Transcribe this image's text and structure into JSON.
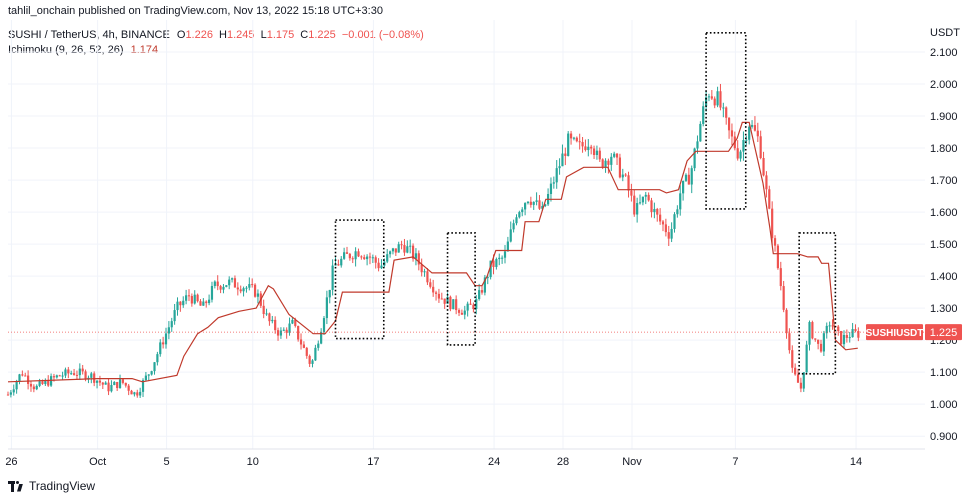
{
  "header": {
    "publish_line": "tahlil_onchain published on TradingView.com, Nov 13, 2022 15:18 UTC+3:30"
  },
  "legend": {
    "symbol": "SUSHI / TetherUS, 4h, BINANCE",
    "o_label": "O",
    "o_value": "1.226",
    "h_label": "H",
    "h_value": "1.245",
    "l_label": "L",
    "l_value": "1.175",
    "c_label": "C",
    "c_value": "1.225",
    "change": "−0.001 (−0.08%)",
    "indicator": "Ichimoku (9, 26, 52, 26)",
    "indicator_value": "1.174"
  },
  "footer": {
    "brand": "TradingView"
  },
  "colors": {
    "up": "#26a69a",
    "down": "#ef5350",
    "ichimoku": "#c0392b",
    "grid": "#f0f3fa",
    "price_tag": "#ef5350"
  },
  "chart_data": {
    "type": "candlestick",
    "currency_label": "USDT",
    "y_ticks": [
      "2.100",
      "2.000",
      "1.900",
      "1.800",
      "1.700",
      "1.600",
      "1.500",
      "1.400",
      "1.300",
      "1.200",
      "1.100",
      "1.000",
      "0.900"
    ],
    "ylim": [
      0.86,
      2.2
    ],
    "x_tick_labels": [
      {
        "label": "26",
        "day": -4
      },
      {
        "label": "Oct",
        "day": 1
      },
      {
        "label": "5",
        "day": 5
      },
      {
        "label": "10",
        "day": 10
      },
      {
        "label": "17",
        "day": 17
      },
      {
        "label": "24",
        "day": 24
      },
      {
        "label": "28",
        "day": 28
      },
      {
        "label": "Nov",
        "day": 32
      },
      {
        "label": "7",
        "day": 38
      },
      {
        "label": "14",
        "day": 45
      }
    ],
    "xlim_days": [
      -4.2,
      49
    ],
    "last_price": {
      "symbol": "SUSHIUSDT",
      "value": "1.225",
      "price": 1.225
    },
    "close_path": [
      [
        -4.2,
        1.03
      ],
      [
        -3.4,
        1.1
      ],
      [
        -2.6,
        1.05
      ],
      [
        -1.9,
        1.07
      ],
      [
        -1.2,
        1.09
      ],
      [
        -0.4,
        1.1
      ],
      [
        0.6,
        1.09
      ],
      [
        1.6,
        1.05
      ],
      [
        2.4,
        1.07
      ],
      [
        3.2,
        1.03
      ],
      [
        4.0,
        1.1
      ],
      [
        4.8,
        1.2
      ],
      [
        5.6,
        1.3
      ],
      [
        6.3,
        1.34
      ],
      [
        7.1,
        1.3
      ],
      [
        7.8,
        1.37
      ],
      [
        8.6,
        1.38
      ],
      [
        9.4,
        1.37
      ],
      [
        10.2,
        1.35
      ],
      [
        10.9,
        1.26
      ],
      [
        11.6,
        1.22
      ],
      [
        12.3,
        1.25
      ],
      [
        12.9,
        1.18
      ],
      [
        13.4,
        1.12
      ],
      [
        14.0,
        1.25
      ],
      [
        14.7,
        1.43
      ],
      [
        15.4,
        1.46
      ],
      [
        16.1,
        1.48
      ],
      [
        16.8,
        1.46
      ],
      [
        17.4,
        1.43
      ],
      [
        18.0,
        1.47
      ],
      [
        18.7,
        1.5
      ],
      [
        19.4,
        1.46
      ],
      [
        20.1,
        1.4
      ],
      [
        20.8,
        1.34
      ],
      [
        21.6,
        1.31
      ],
      [
        22.3,
        1.29
      ],
      [
        23.0,
        1.32
      ],
      [
        23.8,
        1.43
      ],
      [
        24.6,
        1.46
      ],
      [
        25.3,
        1.6
      ],
      [
        26.0,
        1.65
      ],
      [
        26.8,
        1.6
      ],
      [
        27.6,
        1.72
      ],
      [
        28.3,
        1.82
      ],
      [
        29.0,
        1.8
      ],
      [
        29.6,
        1.83
      ],
      [
        30.1,
        1.75
      ],
      [
        30.8,
        1.78
      ],
      [
        31.6,
        1.7
      ],
      [
        32.2,
        1.6
      ],
      [
        32.8,
        1.65
      ],
      [
        33.5,
        1.58
      ],
      [
        34.2,
        1.53
      ],
      [
        34.8,
        1.66
      ],
      [
        35.4,
        1.72
      ],
      [
        35.9,
        1.86
      ],
      [
        36.4,
        1.98
      ],
      [
        37.0,
        1.95
      ],
      [
        37.6,
        1.85
      ],
      [
        38.2,
        1.78
      ],
      [
        38.8,
        1.88
      ],
      [
        39.4,
        1.82
      ],
      [
        40.0,
        1.58
      ],
      [
        40.7,
        1.35
      ],
      [
        41.3,
        1.1
      ],
      [
        41.8,
        1.05
      ],
      [
        42.3,
        1.24
      ],
      [
        42.9,
        1.17
      ],
      [
        43.5,
        1.26
      ],
      [
        44.1,
        1.2
      ],
      [
        44.7,
        1.22
      ],
      [
        45.2,
        1.22
      ]
    ],
    "ichimoku_path": [
      [
        -4.2,
        1.07
      ],
      [
        1.0,
        1.08
      ],
      [
        3.0,
        1.08
      ],
      [
        3.6,
        1.07
      ],
      [
        5.6,
        1.09
      ],
      [
        6.0,
        1.15
      ],
      [
        6.8,
        1.22
      ],
      [
        7.4,
        1.24
      ],
      [
        8.0,
        1.27
      ],
      [
        9.2,
        1.29
      ],
      [
        10.2,
        1.3
      ],
      [
        10.9,
        1.37
      ],
      [
        11.2,
        1.36
      ],
      [
        12.1,
        1.28
      ],
      [
        13.5,
        1.22
      ],
      [
        14.2,
        1.22
      ],
      [
        14.8,
        1.26
      ],
      [
        15.2,
        1.35
      ],
      [
        17.9,
        1.35
      ],
      [
        18.2,
        1.45
      ],
      [
        19.3,
        1.46
      ],
      [
        20.4,
        1.41
      ],
      [
        22.4,
        1.41
      ],
      [
        22.9,
        1.37
      ],
      [
        23.3,
        1.37
      ],
      [
        23.6,
        1.4
      ],
      [
        24.1,
        1.48
      ],
      [
        25.6,
        1.48
      ],
      [
        25.8,
        1.57
      ],
      [
        26.6,
        1.57
      ],
      [
        27.0,
        1.64
      ],
      [
        27.9,
        1.64
      ],
      [
        28.2,
        1.71
      ],
      [
        29.2,
        1.74
      ],
      [
        30.6,
        1.74
      ],
      [
        31.2,
        1.67
      ],
      [
        33.6,
        1.67
      ],
      [
        34.0,
        1.66
      ],
      [
        34.7,
        1.67
      ],
      [
        35.2,
        1.76
      ],
      [
        35.7,
        1.79
      ],
      [
        37.6,
        1.79
      ],
      [
        38.1,
        1.83
      ],
      [
        38.4,
        1.88
      ],
      [
        38.8,
        1.88
      ],
      [
        39.6,
        1.69
      ],
      [
        40.0,
        1.55
      ],
      [
        40.2,
        1.47
      ],
      [
        41.6,
        1.47
      ],
      [
        42.2,
        1.46
      ],
      [
        42.8,
        1.46
      ],
      [
        43.0,
        1.44
      ],
      [
        43.4,
        1.44
      ],
      [
        43.8,
        1.2
      ],
      [
        44.4,
        1.17
      ],
      [
        45.1,
        1.175
      ]
    ],
    "highlight_boxes": [
      {
        "x0": 14.8,
        "x1": 17.6,
        "y0": 1.205,
        "y1": 1.575
      },
      {
        "x0": 21.3,
        "x1": 22.9,
        "y0": 1.185,
        "y1": 1.535
      },
      {
        "x0": 36.3,
        "x1": 38.6,
        "y0": 1.61,
        "y1": 2.16
      },
      {
        "x0": 41.7,
        "x1": 43.8,
        "y0": 1.095,
        "y1": 1.535
      }
    ]
  }
}
